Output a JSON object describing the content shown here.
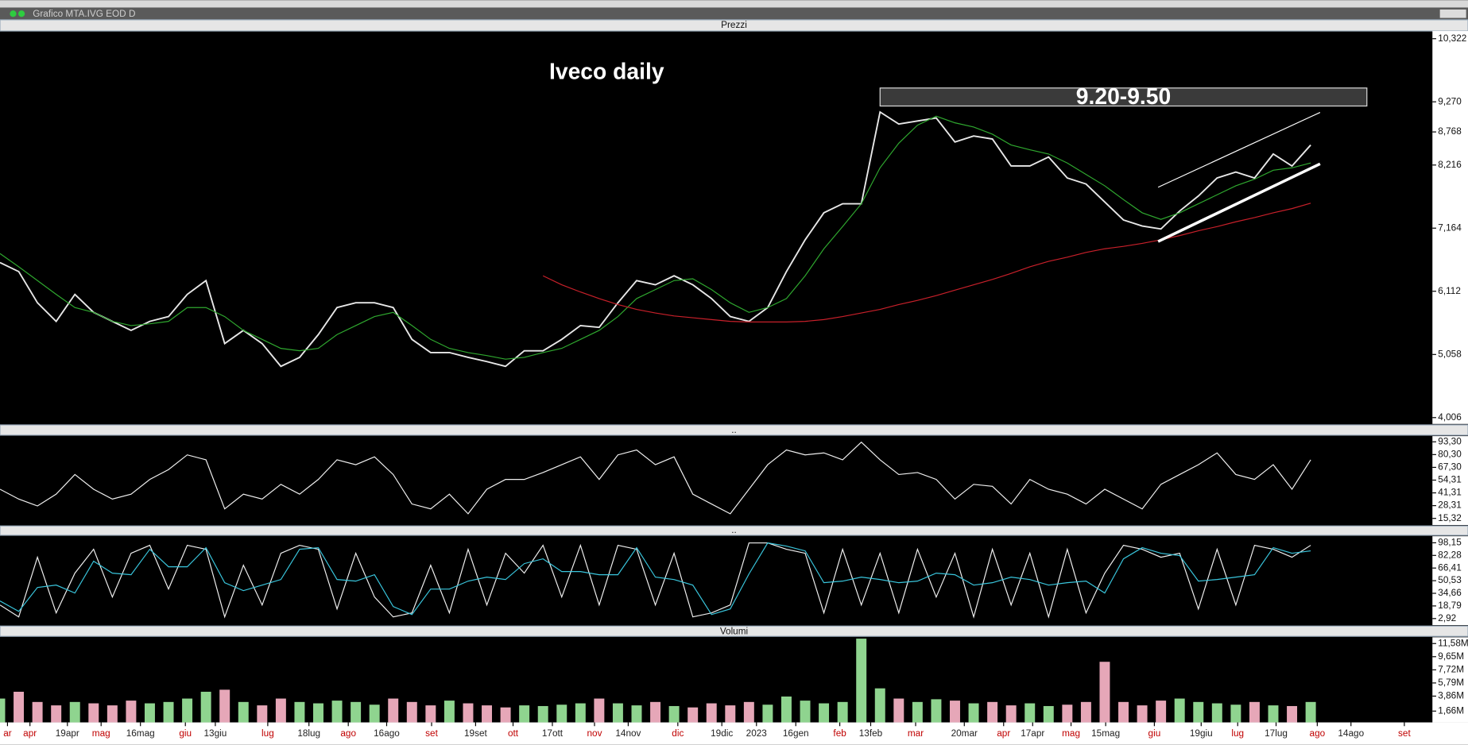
{
  "window_title": "Grafico MTA.IVG EOD D",
  "chart_data": [
    {
      "type": "line",
      "title": "Prezzi",
      "annotations": [
        {
          "text": "Iveco daily"
        },
        {
          "text": "9.20-9.50",
          "range": [
            9.2,
            9.5
          ],
          "x_range": [
            47,
            73
          ]
        }
      ],
      "x": [
        0,
        1,
        2,
        3,
        4,
        5,
        6,
        7,
        8,
        9,
        10,
        11,
        12,
        13,
        14,
        15,
        16,
        17,
        18,
        19,
        20,
        21,
        22,
        23,
        24,
        25,
        26,
        27,
        28,
        29,
        30,
        31,
        32,
        33,
        34,
        35,
        36,
        37,
        38,
        39,
        40,
        41,
        42,
        43,
        44,
        45,
        46,
        47,
        48,
        49,
        50,
        51,
        52,
        53,
        54,
        55,
        56,
        57,
        58,
        59,
        60,
        61,
        62,
        63,
        64,
        65,
        66,
        67,
        68,
        69,
        70
      ],
      "xlim": [
        0,
        76.5
      ],
      "ylim": [
        3.9,
        10.45
      ],
      "yticks": [
        {
          "value": 10.322,
          "label": "10,322"
        },
        {
          "value": 9.27,
          "label": "9,270"
        },
        {
          "value": 8.768,
          "label": "8,768"
        },
        {
          "value": 8.216,
          "label": "8,216"
        },
        {
          "value": 7.164,
          "label": "7,164"
        },
        {
          "value": 6.112,
          "label": "6,112"
        },
        {
          "value": 5.058,
          "label": "5,058"
        },
        {
          "value": 4.006,
          "label": "4,006"
        }
      ],
      "series": [
        {
          "color": "#e8e8e8",
          "values": [
            6.59,
            6.44,
            5.92,
            5.61,
            6.06,
            5.76,
            5.61,
            5.46,
            5.61,
            5.69,
            6.06,
            6.29,
            5.24,
            5.46,
            5.24,
            4.86,
            5.01,
            5.39,
            5.84,
            5.92,
            5.92,
            5.84,
            5.31,
            5.09,
            5.09,
            5.01,
            4.94,
            4.86,
            5.12,
            5.12,
            5.31,
            5.54,
            5.51,
            5.92,
            6.29,
            6.22,
            6.37,
            6.22,
            5.99,
            5.69,
            5.61,
            5.84,
            6.44,
            6.97,
            7.42,
            7.57,
            7.57,
            9.1,
            8.9,
            8.95,
            9.0,
            8.6,
            8.7,
            8.65,
            8.2,
            8.2,
            8.35,
            8.0,
            7.9,
            7.6,
            7.3,
            7.2,
            7.15,
            7.45,
            7.7,
            8.0,
            8.1,
            8.0,
            8.4,
            8.2,
            8.55
          ]
        },
        {
          "color": "#2fa82f",
          "values": [
            6.74,
            6.52,
            6.29,
            6.06,
            5.84,
            5.76,
            5.61,
            5.54,
            5.57,
            5.61,
            5.84,
            5.84,
            5.69,
            5.46,
            5.31,
            5.16,
            5.12,
            5.16,
            5.39,
            5.54,
            5.69,
            5.76,
            5.54,
            5.31,
            5.16,
            5.09,
            5.04,
            4.98,
            5.01,
            5.09,
            5.16,
            5.31,
            5.46,
            5.69,
            5.99,
            6.14,
            6.29,
            6.32,
            6.14,
            5.92,
            5.76,
            5.84,
            5.99,
            6.37,
            6.82,
            7.19,
            7.57,
            8.17,
            8.58,
            8.88,
            9.03,
            8.92,
            8.85,
            8.73,
            8.55,
            8.47,
            8.4,
            8.25,
            8.06,
            7.87,
            7.64,
            7.42,
            7.31,
            7.42,
            7.57,
            7.72,
            7.87,
            7.98,
            8.13,
            8.17,
            8.25
          ]
        },
        {
          "color": "#c8202a",
          "values": [
            null,
            null,
            null,
            null,
            null,
            null,
            null,
            null,
            null,
            null,
            null,
            null,
            null,
            null,
            null,
            null,
            null,
            null,
            null,
            null,
            null,
            null,
            null,
            null,
            null,
            null,
            null,
            null,
            null,
            6.37,
            6.22,
            6.1,
            5.99,
            5.89,
            5.81,
            5.75,
            5.7,
            5.67,
            5.64,
            5.61,
            5.6,
            5.6,
            5.6,
            5.61,
            5.64,
            5.69,
            5.75,
            5.81,
            5.89,
            5.96,
            6.04,
            6.13,
            6.22,
            6.31,
            6.41,
            6.52,
            6.61,
            6.68,
            6.76,
            6.82,
            6.86,
            6.91,
            6.97,
            7.04,
            7.12,
            7.19,
            7.27,
            7.34,
            7.42,
            7.49,
            7.58
          ]
        }
      ]
    },
    {
      "type": "line",
      "title": "..",
      "x": [
        0,
        1,
        2,
        3,
        4,
        5,
        6,
        7,
        8,
        9,
        10,
        11,
        12,
        13,
        14,
        15,
        16,
        17,
        18,
        19,
        20,
        21,
        22,
        23,
        24,
        25,
        26,
        27,
        28,
        29,
        30,
        31,
        32,
        33,
        34,
        35,
        36,
        37,
        38,
        39,
        40,
        41,
        42,
        43,
        44,
        45,
        46,
        47,
        48,
        49,
        50,
        51,
        52,
        53,
        54,
        55,
        56,
        57,
        58,
        59,
        60,
        61,
        62,
        63,
        64,
        65,
        66,
        67,
        68,
        69,
        70
      ],
      "xlim": [
        0,
        76.5
      ],
      "ylim": [
        8.6,
        99.1
      ],
      "yticks": [
        {
          "value": 93.3,
          "label": "93,30"
        },
        {
          "value": 80.3,
          "label": "80,30"
        },
        {
          "value": 67.3,
          "label": "67,30"
        },
        {
          "value": 54.31,
          "label": "54,31"
        },
        {
          "value": 41.31,
          "label": "41,31"
        },
        {
          "value": 28.31,
          "label": "28,31"
        },
        {
          "value": 15.32,
          "label": "15,32"
        }
      ],
      "series": [
        {
          "color": "#f0f0f0",
          "values": [
            45,
            35,
            28,
            40,
            60,
            45,
            35,
            40,
            55,
            65,
            80,
            75,
            25,
            40,
            35,
            50,
            40,
            55,
            75,
            70,
            78,
            60,
            30,
            25,
            40,
            20,
            45,
            55,
            55,
            62,
            70,
            78,
            55,
            80,
            85,
            70,
            78,
            40,
            30,
            20,
            45,
            70,
            85,
            80,
            82,
            75,
            93,
            75,
            60,
            62,
            55,
            35,
            50,
            48,
            30,
            55,
            45,
            40,
            30,
            45,
            35,
            25,
            50,
            60,
            70,
            82,
            60,
            55,
            70,
            45,
            75
          ]
        }
      ]
    },
    {
      "type": "line",
      "title": "..",
      "x": [
        0,
        1,
        2,
        3,
        4,
        5,
        6,
        7,
        8,
        9,
        10,
        11,
        12,
        13,
        14,
        15,
        16,
        17,
        18,
        19,
        20,
        21,
        22,
        23,
        24,
        25,
        26,
        27,
        28,
        29,
        30,
        31,
        32,
        33,
        34,
        35,
        36,
        37,
        38,
        39,
        40,
        41,
        42,
        43,
        44,
        45,
        46,
        47,
        48,
        49,
        50,
        51,
        52,
        53,
        54,
        55,
        56,
        57,
        58,
        59,
        60,
        61,
        62,
        63,
        64,
        65,
        66,
        67,
        68,
        69,
        70
      ],
      "xlim": [
        0,
        76.5
      ],
      "ylim": [
        -5.3,
        106.4
      ],
      "yticks": [
        {
          "value": 98.15,
          "label": "98,15"
        },
        {
          "value": 82.28,
          "label": "82,28"
        },
        {
          "value": 66.41,
          "label": "66,41"
        },
        {
          "value": 50.53,
          "label": "50,53"
        },
        {
          "value": 34.66,
          "label": "34,66"
        },
        {
          "value": 18.79,
          "label": "18,79"
        },
        {
          "value": 2.92,
          "label": "2,92"
        }
      ],
      "series": [
        {
          "color": "#f0f0f0",
          "values": [
            20,
            5,
            80,
            10,
            60,
            90,
            30,
            85,
            95,
            40,
            95,
            90,
            5,
            70,
            20,
            85,
            95,
            90,
            15,
            85,
            30,
            5,
            10,
            70,
            10,
            90,
            20,
            85,
            60,
            95,
            30,
            95,
            20,
            95,
            90,
            20,
            85,
            5,
            10,
            20,
            98,
            98,
            90,
            85,
            10,
            90,
            20,
            85,
            10,
            90,
            30,
            85,
            5,
            90,
            20,
            85,
            5,
            90,
            10,
            60,
            95,
            90,
            80,
            85,
            15,
            90,
            20,
            95,
            90,
            80,
            95
          ]
        },
        {
          "color": "#39c6dd",
          "values": [
            25,
            12,
            42,
            45,
            35,
            75,
            60,
            58,
            90,
            68,
            68,
            92,
            48,
            38,
            45,
            52,
            90,
            92,
            52,
            50,
            58,
            18,
            8,
            40,
            40,
            50,
            55,
            52,
            72,
            78,
            62,
            62,
            58,
            58,
            92,
            55,
            52,
            45,
            8,
            15,
            59,
            98,
            94,
            88,
            48,
            50,
            55,
            52,
            48,
            50,
            60,
            58,
            45,
            48,
            55,
            52,
            45,
            48,
            50,
            35,
            78,
            92,
            85,
            82,
            50,
            52,
            55,
            58,
            92,
            85,
            88
          ]
        }
      ]
    },
    {
      "type": "bar",
      "title": "Volumi",
      "x": [
        0,
        1,
        2,
        3,
        4,
        5,
        6,
        7,
        8,
        9,
        10,
        11,
        12,
        13,
        14,
        15,
        16,
        17,
        18,
        19,
        20,
        21,
        22,
        23,
        24,
        25,
        26,
        27,
        28,
        29,
        30,
        31,
        32,
        33,
        34,
        35,
        36,
        37,
        38,
        39,
        40,
        41,
        42,
        43,
        44,
        45,
        46,
        47,
        48,
        49,
        50,
        51,
        52,
        53,
        54,
        55,
        56,
        57,
        58,
        59,
        60,
        61,
        62,
        63,
        64,
        65,
        66,
        67,
        68,
        69,
        70
      ],
      "xlim": [
        0,
        76.5
      ],
      "ylim": [
        0,
        12.5
      ],
      "colors": [
        "#8fd48f",
        "#e6a7b8"
      ],
      "yticks": [
        {
          "value": 11.58,
          "label": "11,58M"
        },
        {
          "value": 9.65,
          "label": "9,65M"
        },
        {
          "value": 7.72,
          "label": "7,72M"
        },
        {
          "value": 5.79,
          "label": "5,79M"
        },
        {
          "value": 3.86,
          "label": "3,86M"
        },
        {
          "value": 1.66,
          "label": "1,66M"
        }
      ],
      "xticks": [
        {
          "value": 0.4,
          "label": "ar"
        },
        {
          "value": 1.6,
          "label": "apr"
        },
        {
          "value": 3.6,
          "label": "19apr"
        },
        {
          "value": 5.4,
          "label": "mag"
        },
        {
          "value": 7.5,
          "label": "16mag"
        },
        {
          "value": 9.9,
          "label": "giu"
        },
        {
          "value": 11.5,
          "label": "13giu"
        },
        {
          "value": 14.3,
          "label": "lug"
        },
        {
          "value": 16.5,
          "label": "18lug"
        },
        {
          "value": 18.6,
          "label": "ago"
        },
        {
          "value": 20.65,
          "label": "16ago"
        },
        {
          "value": 23.05,
          "label": "set"
        },
        {
          "value": 25.4,
          "label": "19set"
        },
        {
          "value": 27.4,
          "label": "ott"
        },
        {
          "value": 29.5,
          "label": "17ott"
        },
        {
          "value": 31.75,
          "label": "nov"
        },
        {
          "value": 33.55,
          "label": "14nov"
        },
        {
          "value": 36.2,
          "label": "dic"
        },
        {
          "value": 38.55,
          "label": "19dic"
        },
        {
          "value": 40.4,
          "label": "2023"
        },
        {
          "value": 42.5,
          "label": "16gen"
        },
        {
          "value": 44.85,
          "label": "feb"
        },
        {
          "value": 46.5,
          "label": "13feb"
        },
        {
          "value": 48.9,
          "label": "mar"
        },
        {
          "value": 51.5,
          "label": "20mar"
        },
        {
          "value": 53.6,
          "label": "apr"
        },
        {
          "value": 55.15,
          "label": "17apr"
        },
        {
          "value": 57.2,
          "label": "mag"
        },
        {
          "value": 59.05,
          "label": "15mag"
        },
        {
          "value": 61.65,
          "label": "giu"
        },
        {
          "value": 64.15,
          "label": "19giu"
        },
        {
          "value": 66.1,
          "label": "lug"
        },
        {
          "value": 68.15,
          "label": "17lug"
        },
        {
          "value": 70.35,
          "label": "ago"
        },
        {
          "value": 72.15,
          "label": "14ago"
        },
        {
          "value": 75,
          "label": "set"
        }
      ],
      "values": [
        3.5,
        4.5,
        3,
        2.5,
        3,
        2.8,
        2.5,
        3.2,
        2.8,
        3,
        3.5,
        4.5,
        4.8,
        3,
        2.5,
        3.5,
        3,
        2.8,
        3.2,
        3,
        2.6,
        3.5,
        3,
        2.5,
        3.2,
        2.8,
        2.5,
        2.2,
        2.5,
        2.4,
        2.6,
        2.8,
        3.5,
        2.8,
        2.5,
        3,
        2.4,
        2.2,
        2.8,
        2.5,
        3,
        2.6,
        3.8,
        3.2,
        2.8,
        3,
        12.3,
        5,
        3.5,
        3,
        3.4,
        3.2,
        2.8,
        3,
        2.5,
        2.8,
        2.4,
        2.6,
        3,
        8.9,
        3,
        2.5,
        3.2,
        3.5,
        3,
        2.8,
        2.6,
        3,
        2.5,
        2.4,
        3
      ]
    }
  ]
}
